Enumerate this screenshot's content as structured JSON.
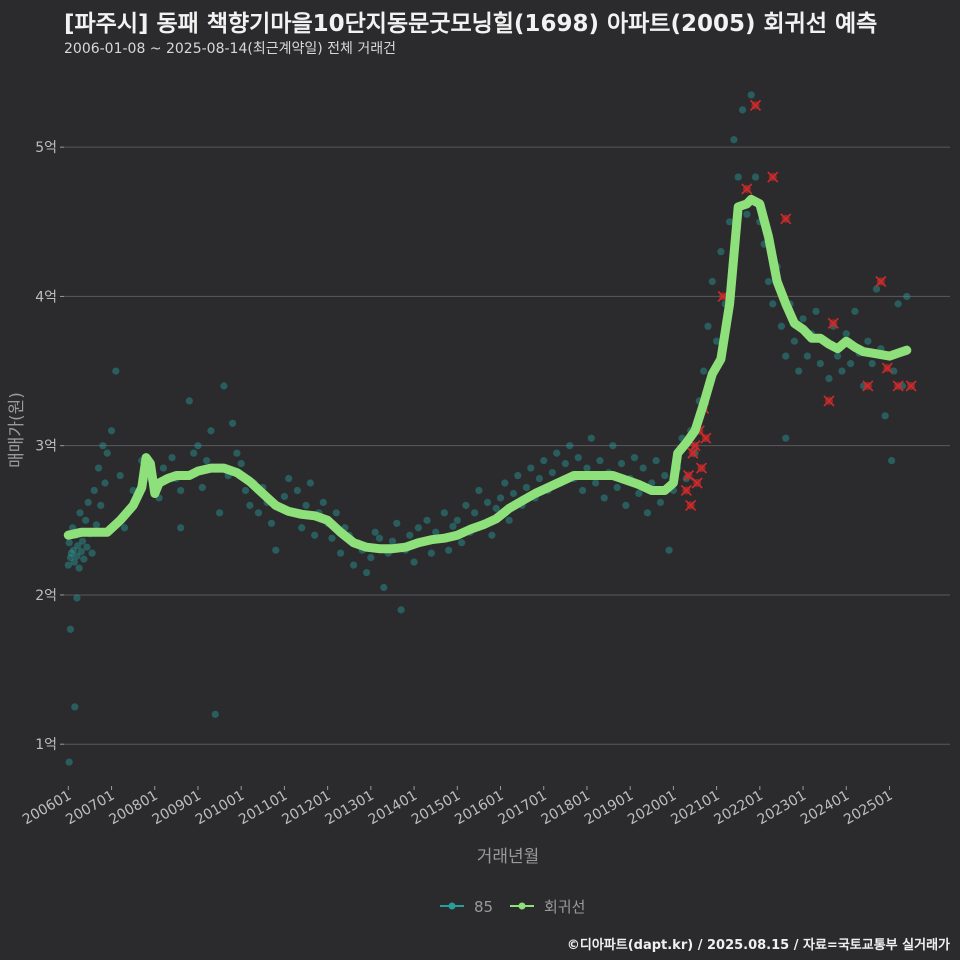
{
  "header": {
    "title": "[파주시] 동패 책향기마을10단지동문굿모닝힐(1698) 아파트(2005) 회귀선 예측",
    "subtitle": "2006-01-08 ~ 2025-08-14(최근계약일) 전체 거래건"
  },
  "credit": "©디아파트(dapt.kr) / 2025.08.15 / 자료=국토교통부 실거래가",
  "colors": {
    "background": "#2b2b2d",
    "points": "#2a9d9b",
    "regression": "#8ee07a",
    "highlight": "#d12a2a",
    "grid": "#5a5a5c"
  },
  "chart_data": {
    "type": "scatter",
    "xlabel": "거래년월",
    "ylabel": "매매가(원)",
    "xlim": [
      2005.9,
      2026.4
    ],
    "ylim": [
      0.72,
      5.45
    ],
    "y_ticks": [
      {
        "value": 1,
        "label": "1억"
      },
      {
        "value": 2,
        "label": "2억"
      },
      {
        "value": 3,
        "label": "3억"
      },
      {
        "value": 4,
        "label": "4억"
      },
      {
        "value": 5,
        "label": "5억"
      }
    ],
    "x_ticks": [
      {
        "value": 2006.0,
        "label": "200601"
      },
      {
        "value": 2007.0,
        "label": "200701"
      },
      {
        "value": 2008.0,
        "label": "200801"
      },
      {
        "value": 2009.0,
        "label": "200901"
      },
      {
        "value": 2010.0,
        "label": "201001"
      },
      {
        "value": 2011.0,
        "label": "201101"
      },
      {
        "value": 2012.0,
        "label": "201201"
      },
      {
        "value": 2013.0,
        "label": "201301"
      },
      {
        "value": 2014.0,
        "label": "201401"
      },
      {
        "value": 2015.0,
        "label": "201501"
      },
      {
        "value": 2016.0,
        "label": "201601"
      },
      {
        "value": 2017.0,
        "label": "201701"
      },
      {
        "value": 2018.0,
        "label": "201801"
      },
      {
        "value": 2019.0,
        "label": "201901"
      },
      {
        "value": 2020.0,
        "label": "202001"
      },
      {
        "value": 2021.0,
        "label": "202101"
      },
      {
        "value": 2022.0,
        "label": "202201"
      },
      {
        "value": 2023.0,
        "label": "202301"
      },
      {
        "value": 2024.0,
        "label": "202401"
      },
      {
        "value": 2025.0,
        "label": "202501"
      }
    ],
    "legend": [
      {
        "key": "points",
        "label": "85"
      },
      {
        "key": "regression",
        "label": "회귀선"
      }
    ],
    "legend_position": "bottom",
    "regression_line": [
      [
        2006.0,
        2.4
      ],
      [
        2006.3,
        2.42
      ],
      [
        2006.6,
        2.42
      ],
      [
        2006.9,
        2.42
      ],
      [
        2007.2,
        2.5
      ],
      [
        2007.5,
        2.6
      ],
      [
        2007.7,
        2.72
      ],
      [
        2007.8,
        2.92
      ],
      [
        2007.9,
        2.88
      ],
      [
        2008.0,
        2.68
      ],
      [
        2008.1,
        2.75
      ],
      [
        2008.3,
        2.78
      ],
      [
        2008.5,
        2.8
      ],
      [
        2008.8,
        2.8
      ],
      [
        2009.0,
        2.83
      ],
      [
        2009.3,
        2.85
      ],
      [
        2009.6,
        2.85
      ],
      [
        2009.9,
        2.82
      ],
      [
        2010.2,
        2.76
      ],
      [
        2010.5,
        2.68
      ],
      [
        2010.8,
        2.6
      ],
      [
        2011.1,
        2.56
      ],
      [
        2011.4,
        2.54
      ],
      [
        2011.7,
        2.53
      ],
      [
        2012.0,
        2.5
      ],
      [
        2012.3,
        2.42
      ],
      [
        2012.6,
        2.35
      ],
      [
        2012.9,
        2.32
      ],
      [
        2013.2,
        2.31
      ],
      [
        2013.5,
        2.31
      ],
      [
        2013.8,
        2.32
      ],
      [
        2014.1,
        2.35
      ],
      [
        2014.4,
        2.37
      ],
      [
        2014.7,
        2.38
      ],
      [
        2015.0,
        2.4
      ],
      [
        2015.3,
        2.44
      ],
      [
        2015.6,
        2.47
      ],
      [
        2015.9,
        2.51
      ],
      [
        2016.2,
        2.58
      ],
      [
        2016.5,
        2.63
      ],
      [
        2016.8,
        2.68
      ],
      [
        2017.1,
        2.72
      ],
      [
        2017.4,
        2.76
      ],
      [
        2017.7,
        2.8
      ],
      [
        2018.0,
        2.8
      ],
      [
        2018.3,
        2.8
      ],
      [
        2018.6,
        2.8
      ],
      [
        2018.9,
        2.77
      ],
      [
        2019.2,
        2.74
      ],
      [
        2019.5,
        2.7
      ],
      [
        2019.8,
        2.7
      ],
      [
        2020.0,
        2.75
      ],
      [
        2020.1,
        2.95
      ],
      [
        2020.3,
        3.02
      ],
      [
        2020.5,
        3.1
      ],
      [
        2020.7,
        3.28
      ],
      [
        2020.9,
        3.48
      ],
      [
        2021.1,
        3.58
      ],
      [
        2021.3,
        3.95
      ],
      [
        2021.5,
        4.6
      ],
      [
        2021.7,
        4.62
      ],
      [
        2021.8,
        4.65
      ],
      [
        2022.0,
        4.62
      ],
      [
        2022.2,
        4.4
      ],
      [
        2022.4,
        4.1
      ],
      [
        2022.6,
        3.95
      ],
      [
        2022.8,
        3.82
      ],
      [
        2023.0,
        3.78
      ],
      [
        2023.2,
        3.72
      ],
      [
        2023.4,
        3.72
      ],
      [
        2023.6,
        3.68
      ],
      [
        2023.8,
        3.65
      ],
      [
        2024.0,
        3.7
      ],
      [
        2024.2,
        3.66
      ],
      [
        2024.4,
        3.63
      ],
      [
        2024.6,
        3.62
      ],
      [
        2024.8,
        3.61
      ],
      [
        2025.0,
        3.6
      ],
      [
        2025.2,
        3.62
      ],
      [
        2025.4,
        3.64
      ]
    ],
    "points": [
      [
        2006.0,
        2.2
      ],
      [
        2006.02,
        2.35
      ],
      [
        2006.05,
        2.25
      ],
      [
        2006.07,
        2.28
      ],
      [
        2006.1,
        2.45
      ],
      [
        2006.12,
        2.3
      ],
      [
        2006.14,
        2.22
      ],
      [
        2006.17,
        2.4
      ],
      [
        2006.2,
        2.26
      ],
      [
        2006.22,
        2.33
      ],
      [
        2006.25,
        2.18
      ],
      [
        2006.27,
        2.55
      ],
      [
        2006.3,
        2.29
      ],
      [
        2006.33,
        2.36
      ],
      [
        2006.36,
        2.24
      ],
      [
        2006.4,
        2.5
      ],
      [
        2006.43,
        2.32
      ],
      [
        2006.46,
        2.62
      ],
      [
        2006.5,
        2.41
      ],
      [
        2006.55,
        2.28
      ],
      [
        2006.6,
        2.7
      ],
      [
        2006.65,
        2.47
      ],
      [
        2006.7,
        2.85
      ],
      [
        2006.75,
        2.6
      ],
      [
        2006.8,
        3.0
      ],
      [
        2006.85,
        2.75
      ],
      [
        2006.9,
        2.95
      ],
      [
        2007.0,
        3.1
      ],
      [
        2007.1,
        3.5
      ],
      [
        2007.2,
        2.8
      ],
      [
        2006.05,
        1.77
      ],
      [
        2006.15,
        1.25
      ],
      [
        2006.02,
        0.88
      ],
      [
        2006.2,
        1.98
      ],
      [
        2007.3,
        2.45
      ],
      [
        2007.5,
        2.7
      ],
      [
        2007.7,
        2.9
      ],
      [
        2007.9,
        2.78
      ],
      [
        2008.0,
        2.72
      ],
      [
        2008.1,
        2.65
      ],
      [
        2008.2,
        2.85
      ],
      [
        2008.4,
        2.92
      ],
      [
        2008.5,
        2.78
      ],
      [
        2008.6,
        2.7
      ],
      [
        2008.8,
        3.3
      ],
      [
        2008.9,
        2.95
      ],
      [
        2009.0,
        3.0
      ],
      [
        2009.1,
        2.72
      ],
      [
        2009.2,
        2.9
      ],
      [
        2009.3,
        3.1
      ],
      [
        2009.4,
        2.85
      ],
      [
        2009.5,
        2.55
      ],
      [
        2009.6,
        3.4
      ],
      [
        2009.7,
        2.8
      ],
      [
        2009.8,
        3.15
      ],
      [
        2009.9,
        2.95
      ],
      [
        2010.0,
        2.88
      ],
      [
        2010.1,
        2.7
      ],
      [
        2010.2,
        2.6
      ],
      [
        2010.3,
        2.75
      ],
      [
        2010.4,
        2.55
      ],
      [
        2010.5,
        2.72
      ],
      [
        2010.6,
        2.62
      ],
      [
        2010.7,
        2.48
      ],
      [
        2010.8,
        2.3
      ],
      [
        2010.9,
        2.58
      ],
      [
        2011.0,
        2.66
      ],
      [
        2011.1,
        2.78
      ],
      [
        2011.2,
        2.55
      ],
      [
        2011.3,
        2.7
      ],
      [
        2011.4,
        2.45
      ],
      [
        2011.5,
        2.6
      ],
      [
        2011.6,
        2.75
      ],
      [
        2011.7,
        2.4
      ],
      [
        2011.8,
        2.55
      ],
      [
        2011.9,
        2.62
      ],
      [
        2012.0,
        2.48
      ],
      [
        2012.1,
        2.38
      ],
      [
        2012.2,
        2.55
      ],
      [
        2012.3,
        2.28
      ],
      [
        2012.4,
        2.45
      ],
      [
        2012.5,
        2.4
      ],
      [
        2012.6,
        2.2
      ],
      [
        2012.7,
        2.35
      ],
      [
        2012.8,
        2.3
      ],
      [
        2012.9,
        2.15
      ],
      [
        2013.0,
        2.25
      ],
      [
        2013.1,
        2.42
      ],
      [
        2013.2,
        2.38
      ],
      [
        2013.3,
        2.05
      ],
      [
        2013.4,
        2.28
      ],
      [
        2013.5,
        2.36
      ],
      [
        2013.6,
        2.48
      ],
      [
        2013.7,
        1.9
      ],
      [
        2013.8,
        2.3
      ],
      [
        2013.9,
        2.4
      ],
      [
        2014.0,
        2.22
      ],
      [
        2014.1,
        2.45
      ],
      [
        2014.2,
        2.35
      ],
      [
        2014.3,
        2.5
      ],
      [
        2014.4,
        2.28
      ],
      [
        2014.5,
        2.42
      ],
      [
        2014.6,
        2.38
      ],
      [
        2014.7,
        2.55
      ],
      [
        2014.8,
        2.3
      ],
      [
        2014.9,
        2.46
      ],
      [
        2015.0,
        2.5
      ],
      [
        2015.1,
        2.35
      ],
      [
        2015.2,
        2.6
      ],
      [
        2015.3,
        2.42
      ],
      [
        2015.4,
        2.55
      ],
      [
        2015.5,
        2.7
      ],
      [
        2015.6,
        2.48
      ],
      [
        2015.7,
        2.62
      ],
      [
        2015.8,
        2.4
      ],
      [
        2015.9,
        2.58
      ],
      [
        2016.0,
        2.65
      ],
      [
        2016.1,
        2.75
      ],
      [
        2016.2,
        2.5
      ],
      [
        2016.3,
        2.68
      ],
      [
        2016.4,
        2.8
      ],
      [
        2016.5,
        2.6
      ],
      [
        2016.6,
        2.72
      ],
      [
        2016.7,
        2.85
      ],
      [
        2016.8,
        2.65
      ],
      [
        2016.9,
        2.78
      ],
      [
        2017.0,
        2.9
      ],
      [
        2017.1,
        2.7
      ],
      [
        2017.2,
        2.82
      ],
      [
        2017.3,
        2.95
      ],
      [
        2017.4,
        2.75
      ],
      [
        2017.5,
        2.88
      ],
      [
        2017.6,
        3.0
      ],
      [
        2017.7,
        2.78
      ],
      [
        2017.8,
        2.92
      ],
      [
        2017.9,
        2.7
      ],
      [
        2018.0,
        2.85
      ],
      [
        2018.1,
        3.05
      ],
      [
        2018.2,
        2.75
      ],
      [
        2018.3,
        2.9
      ],
      [
        2018.4,
        2.65
      ],
      [
        2018.5,
        2.82
      ],
      [
        2018.6,
        3.0
      ],
      [
        2018.7,
        2.72
      ],
      [
        2018.8,
        2.88
      ],
      [
        2018.9,
        2.6
      ],
      [
        2019.0,
        2.78
      ],
      [
        2019.1,
        2.92
      ],
      [
        2019.2,
        2.68
      ],
      [
        2019.3,
        2.85
      ],
      [
        2019.4,
        2.55
      ],
      [
        2019.5,
        2.75
      ],
      [
        2019.6,
        2.9
      ],
      [
        2019.7,
        2.62
      ],
      [
        2019.8,
        2.8
      ],
      [
        2019.9,
        2.3
      ],
      [
        2020.0,
        2.7
      ],
      [
        2020.1,
        2.85
      ],
      [
        2020.2,
        3.05
      ],
      [
        2020.3,
        2.78
      ],
      [
        2020.4,
        3.1
      ],
      [
        2020.5,
        2.95
      ],
      [
        2020.6,
        3.3
      ],
      [
        2020.7,
        3.5
      ],
      [
        2020.8,
        3.8
      ],
      [
        2020.9,
        4.1
      ],
      [
        2021.0,
        3.7
      ],
      [
        2021.1,
        4.3
      ],
      [
        2021.2,
        3.95
      ],
      [
        2021.3,
        4.5
      ],
      [
        2021.4,
        5.05
      ],
      [
        2021.5,
        4.8
      ],
      [
        2021.6,
        5.25
      ],
      [
        2021.7,
        4.55
      ],
      [
        2021.8,
        5.35
      ],
      [
        2021.9,
        4.8
      ],
      [
        2022.0,
        4.5
      ],
      [
        2022.1,
        4.35
      ],
      [
        2022.2,
        4.1
      ],
      [
        2022.3,
        3.95
      ],
      [
        2022.4,
        4.2
      ],
      [
        2022.5,
        3.8
      ],
      [
        2022.6,
        3.6
      ],
      [
        2022.7,
        3.95
      ],
      [
        2022.8,
        3.7
      ],
      [
        2022.9,
        3.5
      ],
      [
        2023.0,
        3.85
      ],
      [
        2023.1,
        3.6
      ],
      [
        2023.2,
        3.75
      ],
      [
        2023.3,
        3.9
      ],
      [
        2023.4,
        3.55
      ],
      [
        2023.5,
        3.7
      ],
      [
        2023.6,
        3.45
      ],
      [
        2023.7,
        3.8
      ],
      [
        2023.8,
        3.6
      ],
      [
        2023.9,
        3.5
      ],
      [
        2024.0,
        3.75
      ],
      [
        2024.1,
        3.55
      ],
      [
        2024.2,
        3.9
      ],
      [
        2024.3,
        3.62
      ],
      [
        2024.4,
        3.4
      ],
      [
        2024.5,
        3.7
      ],
      [
        2024.6,
        3.55
      ],
      [
        2024.7,
        4.05
      ],
      [
        2024.8,
        3.65
      ],
      [
        2024.9,
        3.2
      ],
      [
        2025.0,
        3.6
      ],
      [
        2025.1,
        3.5
      ],
      [
        2025.2,
        3.95
      ],
      [
        2025.3,
        3.4
      ],
      [
        2025.4,
        4.0
      ],
      [
        2025.05,
        2.9
      ],
      [
        2022.6,
        3.05
      ],
      [
        2009.4,
        1.2
      ],
      [
        2008.6,
        2.45
      ]
    ],
    "highlighted_points": [
      [
        2020.3,
        2.7
      ],
      [
        2020.35,
        2.8
      ],
      [
        2020.4,
        2.6
      ],
      [
        2020.45,
        2.95
      ],
      [
        2020.5,
        3.0
      ],
      [
        2020.55,
        2.75
      ],
      [
        2020.6,
        3.1
      ],
      [
        2020.65,
        2.85
      ],
      [
        2020.7,
        3.25
      ],
      [
        2020.75,
        3.05
      ],
      [
        2021.15,
        4.0
      ],
      [
        2021.7,
        4.72
      ],
      [
        2021.9,
        5.28
      ],
      [
        2022.3,
        4.8
      ],
      [
        2022.6,
        4.52
      ],
      [
        2023.6,
        3.3
      ],
      [
        2023.7,
        3.82
      ],
      [
        2024.5,
        3.4
      ],
      [
        2024.8,
        4.1
      ],
      [
        2024.95,
        3.52
      ],
      [
        2025.2,
        3.4
      ],
      [
        2025.5,
        3.4
      ]
    ]
  }
}
